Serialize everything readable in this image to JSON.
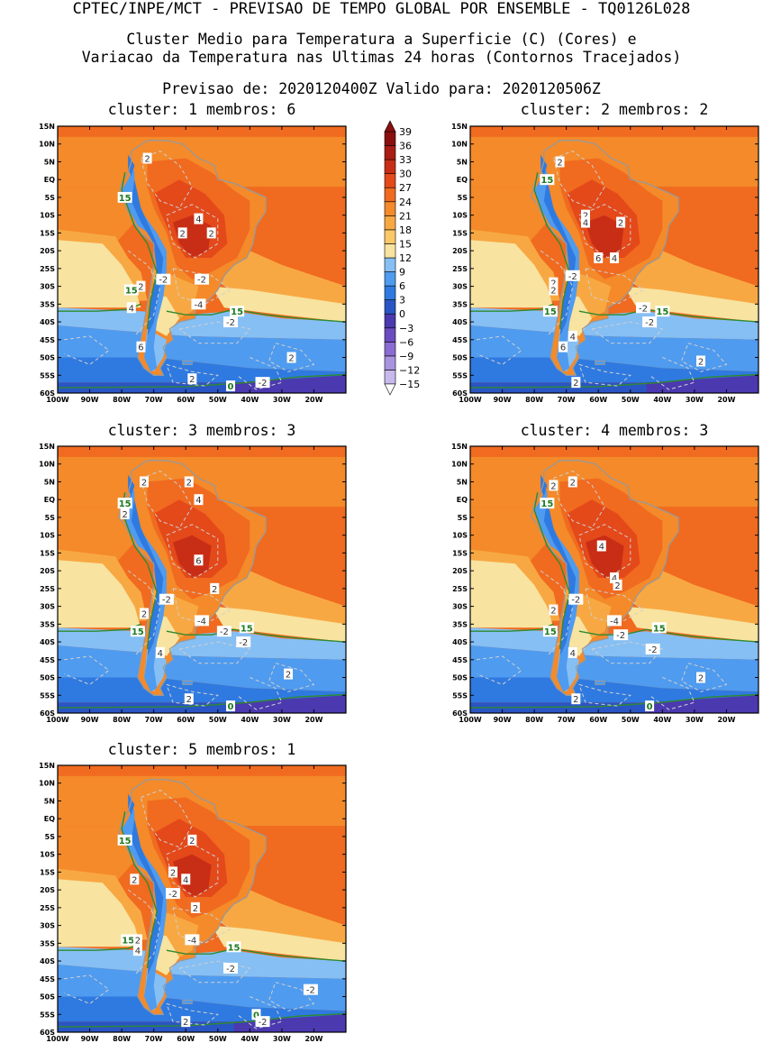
{
  "header": {
    "line1": "CPTEC/INPE/MCT - PREVISAO DE TEMPO GLOBAL POR ENSEMBLE - TQ0126L028",
    "line2": "Cluster Medio para Temperatura a Superficie (C) (Cores) e",
    "line3": "Variacao da Temperatura nas Ultimas 24 horas (Contornos Tracejados)",
    "line4": "Previsao de: 2020120400Z    Valido para: 2020120506Z"
  },
  "axes": {
    "lat_labels": [
      "15N",
      "10N",
      "5N",
      "EQ",
      "5S",
      "10S",
      "15S",
      "20S",
      "25S",
      "30S",
      "35S",
      "40S",
      "45S",
      "50S",
      "55S",
      "60S"
    ],
    "lon_labels": [
      "100W",
      "90W",
      "80W",
      "70W",
      "60W",
      "50W",
      "40W",
      "30W",
      "20W"
    ]
  },
  "colorbar": {
    "levels": [
      "39",
      "36",
      "33",
      "30",
      "27",
      "24",
      "21",
      "18",
      "15",
      "12",
      "9",
      "6",
      "3",
      "0",
      "-3",
      "-6",
      "-9",
      "-12",
      "-15"
    ],
    "colors": [
      "#ffffff",
      "#c7b9ec",
      "#a993e0",
      "#8a6cd2",
      "#6a4cc0",
      "#4b39b0",
      "#2a55c4",
      "#2f7ae0",
      "#4f9bef",
      "#86bff4",
      "#f8e3a0",
      "#fbc868",
      "#f8a843",
      "#f48a2a",
      "#f06a1f",
      "#e4491a",
      "#c82e16",
      "#a91d14",
      "#8a1010"
    ],
    "underflow_color": "#ffffff",
    "overflow_color": "#8a1010"
  },
  "panels": [
    {
      "title": "cluster: 1   membros: 6",
      "contour_labels": [
        {
          "text": "2",
          "lon": -72,
          "lat": 6,
          "style": "gray"
        },
        {
          "text": "15",
          "lon": -79,
          "lat": -5,
          "style": "green"
        },
        {
          "text": "4",
          "lon": -56,
          "lat": -11,
          "style": "gray"
        },
        {
          "text": "2",
          "lon": -61,
          "lat": -15,
          "style": "gray"
        },
        {
          "text": "2",
          "lon": -52,
          "lat": -15,
          "style": "gray"
        },
        {
          "text": "-2",
          "lon": -67,
          "lat": -28,
          "style": "gray"
        },
        {
          "text": "-2",
          "lon": -55,
          "lat": -28,
          "style": "gray"
        },
        {
          "text": "2",
          "lon": -74,
          "lat": -30,
          "style": "gray"
        },
        {
          "text": "15",
          "lon": -77,
          "lat": -31,
          "style": "green"
        },
        {
          "text": "4",
          "lon": -77,
          "lat": -36,
          "style": "gray"
        },
        {
          "text": "-4",
          "lon": -56,
          "lat": -35,
          "style": "gray"
        },
        {
          "text": "15",
          "lon": -44,
          "lat": -37,
          "style": "green"
        },
        {
          "text": "-2",
          "lon": -46,
          "lat": -40,
          "style": "gray"
        },
        {
          "text": "6",
          "lon": -74,
          "lat": -47,
          "style": "gray"
        },
        {
          "text": "2",
          "lon": -27,
          "lat": -50,
          "style": "gray"
        },
        {
          "text": "2",
          "lon": -58,
          "lat": -56,
          "style": "gray"
        },
        {
          "text": "-2",
          "lon": -36,
          "lat": -57,
          "style": "gray"
        },
        {
          "text": "0",
          "lon": -46,
          "lat": -58,
          "style": "green"
        }
      ]
    },
    {
      "title": "cluster: 2   membros: 2",
      "contour_labels": [
        {
          "text": "2",
          "lon": -72,
          "lat": 5,
          "style": "gray"
        },
        {
          "text": "15",
          "lon": -76,
          "lat": 0,
          "style": "green"
        },
        {
          "text": "2",
          "lon": -64,
          "lat": -10,
          "style": "gray"
        },
        {
          "text": "4",
          "lon": -64,
          "lat": -12,
          "style": "gray"
        },
        {
          "text": "2",
          "lon": -53,
          "lat": -12,
          "style": "gray"
        },
        {
          "text": "6",
          "lon": -60,
          "lat": -22,
          "style": "gray"
        },
        {
          "text": "4",
          "lon": -55,
          "lat": -22,
          "style": "gray"
        },
        {
          "text": "-2",
          "lon": -68,
          "lat": -27,
          "style": "gray"
        },
        {
          "text": "2",
          "lon": -74,
          "lat": -29,
          "style": "gray"
        },
        {
          "text": "2",
          "lon": -74,
          "lat": -31,
          "style": "gray"
        },
        {
          "text": "15",
          "lon": -75,
          "lat": -37,
          "style": "green"
        },
        {
          "text": "-2",
          "lon": -46,
          "lat": -36,
          "style": "gray"
        },
        {
          "text": "15",
          "lon": -40,
          "lat": -37,
          "style": "green"
        },
        {
          "text": "-2",
          "lon": -44,
          "lat": -40,
          "style": "gray"
        },
        {
          "text": "4",
          "lon": -68,
          "lat": -44,
          "style": "gray"
        },
        {
          "text": "6",
          "lon": -71,
          "lat": -47,
          "style": "gray"
        },
        {
          "text": "2",
          "lon": -28,
          "lat": -51,
          "style": "gray"
        },
        {
          "text": "2",
          "lon": -67,
          "lat": -57,
          "style": "gray"
        }
      ]
    },
    {
      "title": "cluster: 3   membros: 3",
      "contour_labels": [
        {
          "text": "2",
          "lon": -73,
          "lat": 5,
          "style": "gray"
        },
        {
          "text": "2",
          "lon": -59,
          "lat": 5,
          "style": "gray"
        },
        {
          "text": "4",
          "lon": -56,
          "lat": 0,
          "style": "gray"
        },
        {
          "text": "15",
          "lon": -79,
          "lat": -1,
          "style": "green"
        },
        {
          "text": "2",
          "lon": -79,
          "lat": -4,
          "style": "gray"
        },
        {
          "text": "6",
          "lon": -56,
          "lat": -17,
          "style": "gray"
        },
        {
          "text": "2",
          "lon": -51,
          "lat": -25,
          "style": "gray"
        },
        {
          "text": "-2",
          "lon": -66,
          "lat": -28,
          "style": "gray"
        },
        {
          "text": "2",
          "lon": -73,
          "lat": -32,
          "style": "gray"
        },
        {
          "text": "-4",
          "lon": -55,
          "lat": -34,
          "style": "gray"
        },
        {
          "text": "15",
          "lon": -75,
          "lat": -37,
          "style": "green"
        },
        {
          "text": "-2",
          "lon": -48,
          "lat": -37,
          "style": "gray"
        },
        {
          "text": "15",
          "lon": -41,
          "lat": -36,
          "style": "green"
        },
        {
          "text": "-2",
          "lon": -42,
          "lat": -40,
          "style": "gray"
        },
        {
          "text": "4",
          "lon": -68,
          "lat": -43,
          "style": "gray"
        },
        {
          "text": "2",
          "lon": -28,
          "lat": -49,
          "style": "gray"
        },
        {
          "text": "2",
          "lon": -59,
          "lat": -56,
          "style": "gray"
        },
        {
          "text": "0",
          "lon": -46,
          "lat": -58,
          "style": "green"
        }
      ]
    },
    {
      "title": "cluster: 4   membros: 3",
      "contour_labels": [
        {
          "text": "2",
          "lon": -74,
          "lat": 4,
          "style": "gray"
        },
        {
          "text": "2",
          "lon": -68,
          "lat": 5,
          "style": "gray"
        },
        {
          "text": "15",
          "lon": -76,
          "lat": -1,
          "style": "green"
        },
        {
          "text": "4",
          "lon": -59,
          "lat": -13,
          "style": "gray"
        },
        {
          "text": "4",
          "lon": -55,
          "lat": -22,
          "style": "gray"
        },
        {
          "text": "2",
          "lon": -54,
          "lat": -24,
          "style": "gray"
        },
        {
          "text": "-2",
          "lon": -67,
          "lat": -28,
          "style": "gray"
        },
        {
          "text": "2",
          "lon": -74,
          "lat": -31,
          "style": "gray"
        },
        {
          "text": "-4",
          "lon": -55,
          "lat": -34,
          "style": "gray"
        },
        {
          "text": "15",
          "lon": -75,
          "lat": -37,
          "style": "green"
        },
        {
          "text": "-2",
          "lon": -53,
          "lat": -38,
          "style": "gray"
        },
        {
          "text": "15",
          "lon": -41,
          "lat": -36,
          "style": "green"
        },
        {
          "text": "4",
          "lon": -68,
          "lat": -43,
          "style": "gray"
        },
        {
          "text": "-2",
          "lon": -43,
          "lat": -42,
          "style": "gray"
        },
        {
          "text": "2",
          "lon": -28,
          "lat": -50,
          "style": "gray"
        },
        {
          "text": "2",
          "lon": -67,
          "lat": -56,
          "style": "gray"
        },
        {
          "text": "0",
          "lon": -44,
          "lat": -58,
          "style": "green"
        }
      ]
    },
    {
      "title": "cluster: 5   membros: 1",
      "contour_labels": [
        {
          "text": "15",
          "lon": -79,
          "lat": -6,
          "style": "green"
        },
        {
          "text": "2",
          "lon": -58,
          "lat": -6,
          "style": "gray"
        },
        {
          "text": "2",
          "lon": -64,
          "lat": -15,
          "style": "gray"
        },
        {
          "text": "4",
          "lon": -60,
          "lat": -17,
          "style": "gray"
        },
        {
          "text": "2",
          "lon": -76,
          "lat": -17,
          "style": "gray"
        },
        {
          "text": "-2",
          "lon": -64,
          "lat": -21,
          "style": "gray"
        },
        {
          "text": "2",
          "lon": -57,
          "lat": -25,
          "style": "gray"
        },
        {
          "text": "-4",
          "lon": -58,
          "lat": -34,
          "style": "gray"
        },
        {
          "text": "15",
          "lon": -78,
          "lat": -34,
          "style": "green"
        },
        {
          "text": "2",
          "lon": -75,
          "lat": -34,
          "style": "gray"
        },
        {
          "text": "4",
          "lon": -75,
          "lat": -37,
          "style": "gray"
        },
        {
          "text": "15",
          "lon": -45,
          "lat": -36,
          "style": "green"
        },
        {
          "text": "-2",
          "lon": -46,
          "lat": -42,
          "style": "gray"
        },
        {
          "text": "-2",
          "lon": -21,
          "lat": -48,
          "style": "gray"
        },
        {
          "text": "0",
          "lon": -38,
          "lat": -55,
          "style": "green"
        },
        {
          "text": "-2",
          "lon": -36,
          "lat": -57,
          "style": "gray"
        },
        {
          "text": "2",
          "lon": -60,
          "lat": -57,
          "style": "gray"
        }
      ]
    }
  ]
}
